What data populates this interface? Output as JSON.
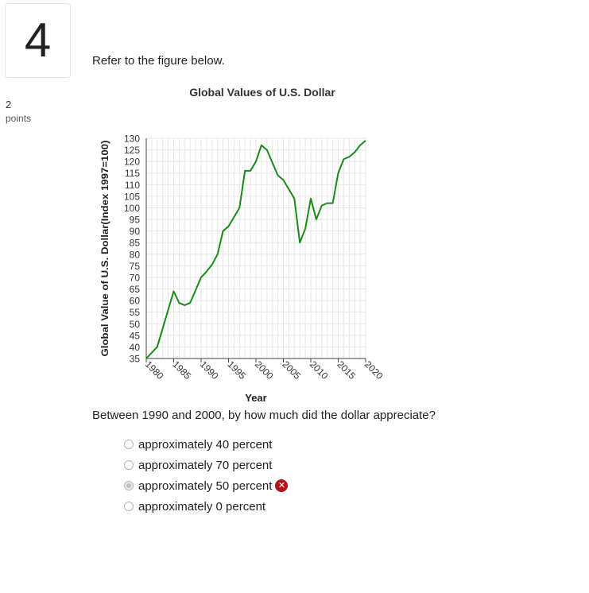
{
  "question": {
    "number": "4",
    "points_value": "2",
    "points_label": "points",
    "prompt": "Refer to the figure below.",
    "text": "Between 1990 and 2000, by how much did the dollar appreciate?",
    "options": [
      {
        "label": "approximately 40 percent",
        "selected": false,
        "incorrect": false
      },
      {
        "label": "approximately 70 percent",
        "selected": false,
        "incorrect": false
      },
      {
        "label": "approximately 50 percent",
        "selected": true,
        "incorrect": true
      },
      {
        "label": "approximately 0 percent",
        "selected": false,
        "incorrect": false
      }
    ],
    "incorrect_icon": "x-circle-icon",
    "incorrect_color": "#b4121b"
  },
  "chart_data": {
    "type": "line",
    "title": "Global Values of U.S. Dollar",
    "xlabel": "Year",
    "ylabel": "Global Value of U.S. Dollar(Index 1997=100)",
    "ylim": [
      35,
      130
    ],
    "yticks": [
      35,
      40,
      45,
      50,
      55,
      60,
      65,
      70,
      75,
      80,
      85,
      90,
      95,
      100,
      105,
      110,
      115,
      120,
      125,
      130
    ],
    "xlim": [
      1980,
      2020
    ],
    "xticks": [
      1980,
      1985,
      1990,
      1995,
      2000,
      2005,
      2010,
      2015,
      2020
    ],
    "grid": true,
    "line_color": "#1a8a1a",
    "series": [
      {
        "x": [
          1980,
          1981,
          1982,
          1983,
          1984,
          1985,
          1986,
          1987,
          1988,
          1989,
          1990,
          1991,
          1992,
          1993,
          1994,
          1995,
          1996,
          1997,
          1998,
          1999,
          2000,
          2001,
          2002,
          2003,
          2004,
          2005,
          2006,
          2007,
          2008,
          2009,
          2010,
          2011,
          2012,
          2013,
          2014,
          2015,
          2016,
          2017,
          2018,
          2019,
          2020
        ],
        "y": [
          35,
          37.5,
          40,
          48,
          56,
          64,
          59,
          58,
          59,
          64.5,
          70,
          72.5,
          75.5,
          80,
          90,
          92,
          96,
          100,
          116,
          116,
          120,
          127,
          125,
          119.5,
          114,
          112,
          108,
          104,
          85,
          91,
          104,
          95,
          101,
          102,
          102,
          115,
          121,
          122,
          124,
          127,
          129
        ]
      }
    ]
  }
}
